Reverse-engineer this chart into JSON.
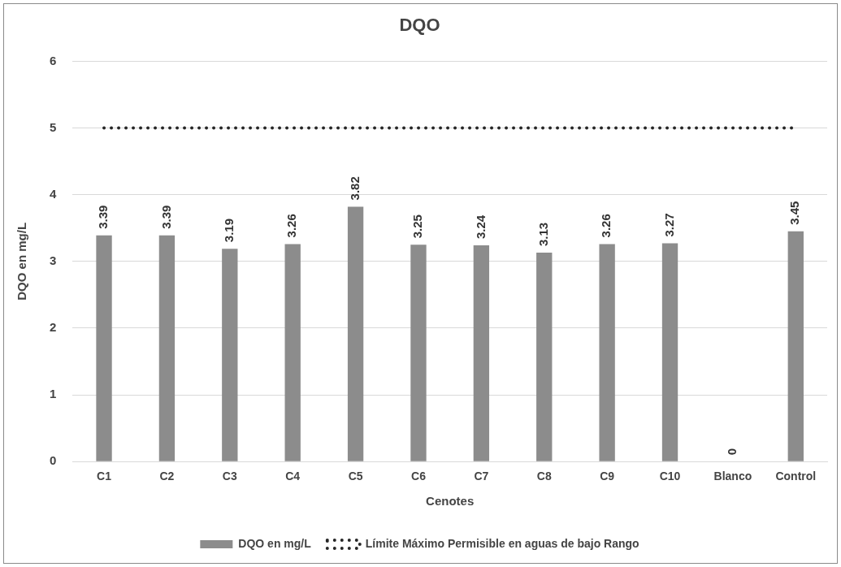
{
  "chart_data": {
    "type": "bar",
    "title": "DQO",
    "xlabel": "Cenotes",
    "ylabel": "DQO en mg/L",
    "categories": [
      "C1",
      "C2",
      "C3",
      "C4",
      "C5",
      "C6",
      "C7",
      "C8",
      "C9",
      "C10",
      "Blanco",
      "Control"
    ],
    "series": [
      {
        "name": "DQO en mg/L",
        "color": "#8c8c8c",
        "values": [
          3.39,
          3.39,
          3.19,
          3.26,
          3.82,
          3.25,
          3.24,
          3.13,
          3.26,
          3.27,
          0,
          3.45
        ],
        "value_labels": [
          "3.39",
          "3.39",
          "3.19",
          "3.26",
          "3.82",
          "3.25",
          "3.24",
          "3.13",
          "3.26",
          "3.27",
          "0",
          "3.45"
        ]
      },
      {
        "name": "Límite Máximo Permisible en aguas de bajo Rango",
        "type": "line",
        "color": "#262626",
        "line_style": "dotted",
        "marker": "none",
        "values": [
          5,
          5,
          5,
          5,
          5,
          5,
          5,
          5,
          5,
          5,
          5,
          5
        ]
      }
    ],
    "ylim": [
      0,
      6
    ],
    "yticks": [
      0,
      1,
      2,
      3,
      4,
      5,
      6
    ],
    "grid": "y",
    "legend": "bottom"
  }
}
